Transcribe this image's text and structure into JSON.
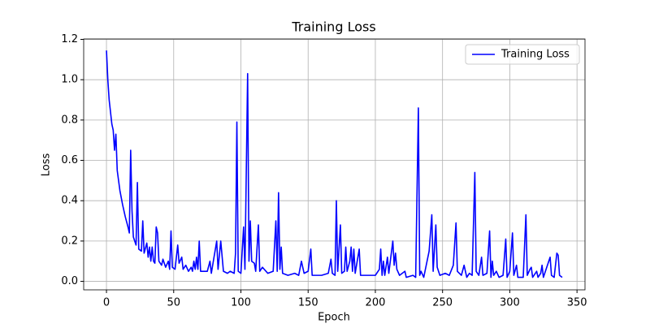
{
  "chart_data": {
    "type": "line",
    "title": "Training Loss",
    "x_label": "Epoch",
    "y_label": "Loss",
    "x": [
      0,
      1,
      2,
      3,
      4,
      5,
      6,
      7,
      8,
      10,
      12,
      14,
      16,
      17,
      18,
      19,
      20,
      22,
      23,
      24,
      26,
      27,
      28,
      30,
      31,
      32,
      33,
      34,
      35,
      36,
      37,
      38,
      39,
      41,
      42,
      44,
      46,
      47,
      48,
      49,
      51,
      53,
      54,
      56,
      57,
      59,
      61,
      63,
      64,
      65,
      66,
      67,
      68,
      69,
      70,
      75,
      77,
      78,
      82,
      83,
      85,
      87,
      90,
      92,
      95,
      96,
      97,
      98,
      100,
      102,
      103,
      105,
      106,
      107,
      108,
      110,
      111,
      113,
      114,
      116,
      120,
      124,
      126,
      127,
      128,
      129,
      130,
      131,
      135,
      140,
      143,
      145,
      147,
      150,
      152,
      153,
      160,
      165,
      167,
      168,
      170,
      171,
      172,
      174,
      175,
      177,
      178,
      179,
      181,
      182,
      183,
      184,
      185,
      188,
      189,
      195,
      200,
      203,
      204,
      205,
      206,
      207,
      209,
      210,
      213,
      214,
      215,
      216,
      218,
      222,
      223,
      228,
      230,
      232,
      233,
      234,
      236,
      240,
      242,
      243,
      245,
      246,
      248,
      252,
      255,
      258,
      260,
      261,
      264,
      266,
      268,
      270,
      272,
      274,
      275,
      277,
      279,
      280,
      283,
      285,
      286,
      287,
      288,
      290,
      292,
      295,
      297,
      298,
      300,
      302,
      303,
      305,
      306,
      310,
      312,
      313,
      315,
      316,
      317,
      320,
      321,
      323,
      324,
      325,
      330,
      331,
      333,
      335,
      336,
      337,
      339
    ],
    "series": [
      {
        "name": "Training Loss",
        "color": "#0000ff",
        "values": [
          1.145,
          1.0,
          0.9,
          0.84,
          0.78,
          0.75,
          0.65,
          0.73,
          0.55,
          0.45,
          0.38,
          0.32,
          0.27,
          0.24,
          0.65,
          0.35,
          0.22,
          0.18,
          0.49,
          0.16,
          0.15,
          0.3,
          0.14,
          0.19,
          0.12,
          0.17,
          0.1,
          0.17,
          0.1,
          0.09,
          0.27,
          0.24,
          0.1,
          0.08,
          0.11,
          0.07,
          0.1,
          0.06,
          0.25,
          0.07,
          0.06,
          0.18,
          0.09,
          0.12,
          0.06,
          0.08,
          0.05,
          0.07,
          0.05,
          0.1,
          0.06,
          0.12,
          0.06,
          0.2,
          0.05,
          0.05,
          0.1,
          0.04,
          0.2,
          0.06,
          0.2,
          0.05,
          0.04,
          0.05,
          0.04,
          0.14,
          0.79,
          0.05,
          0.04,
          0.27,
          0.06,
          1.03,
          0.1,
          0.3,
          0.1,
          0.09,
          0.05,
          0.28,
          0.05,
          0.07,
          0.04,
          0.05,
          0.3,
          0.05,
          0.44,
          0.06,
          0.17,
          0.04,
          0.03,
          0.04,
          0.03,
          0.1,
          0.04,
          0.05,
          0.16,
          0.03,
          0.03,
          0.04,
          0.11,
          0.04,
          0.03,
          0.4,
          0.05,
          0.28,
          0.04,
          0.05,
          0.17,
          0.05,
          0.1,
          0.17,
          0.05,
          0.16,
          0.04,
          0.16,
          0.03,
          0.03,
          0.03,
          0.06,
          0.16,
          0.03,
          0.1,
          0.03,
          0.12,
          0.04,
          0.2,
          0.08,
          0.14,
          0.06,
          0.03,
          0.05,
          0.02,
          0.03,
          0.02,
          0.86,
          0.03,
          0.05,
          0.02,
          0.15,
          0.33,
          0.05,
          0.28,
          0.07,
          0.03,
          0.04,
          0.03,
          0.08,
          0.29,
          0.05,
          0.03,
          0.08,
          0.02,
          0.04,
          0.03,
          0.54,
          0.05,
          0.03,
          0.12,
          0.03,
          0.04,
          0.25,
          0.02,
          0.1,
          0.03,
          0.05,
          0.02,
          0.03,
          0.21,
          0.02,
          0.05,
          0.24,
          0.03,
          0.08,
          0.02,
          0.02,
          0.33,
          0.03,
          0.06,
          0.07,
          0.02,
          0.05,
          0.02,
          0.04,
          0.08,
          0.02,
          0.12,
          0.03,
          0.02,
          0.14,
          0.13,
          0.03,
          0.02
        ]
      }
    ],
    "xlim": [
      -16.95,
      355.95
    ],
    "xticks": [
      0,
      50,
      100,
      150,
      200,
      250,
      300,
      350
    ],
    "ylim": [
      -0.042,
      1.202
    ],
    "yticks": [
      {
        "value": 0,
        "label": "0.0"
      },
      0.2,
      0.4,
      0.6,
      0.8,
      {
        "value": 1,
        "label": "1.0"
      },
      1.2
    ],
    "grid": true,
    "legend": "upper right"
  }
}
